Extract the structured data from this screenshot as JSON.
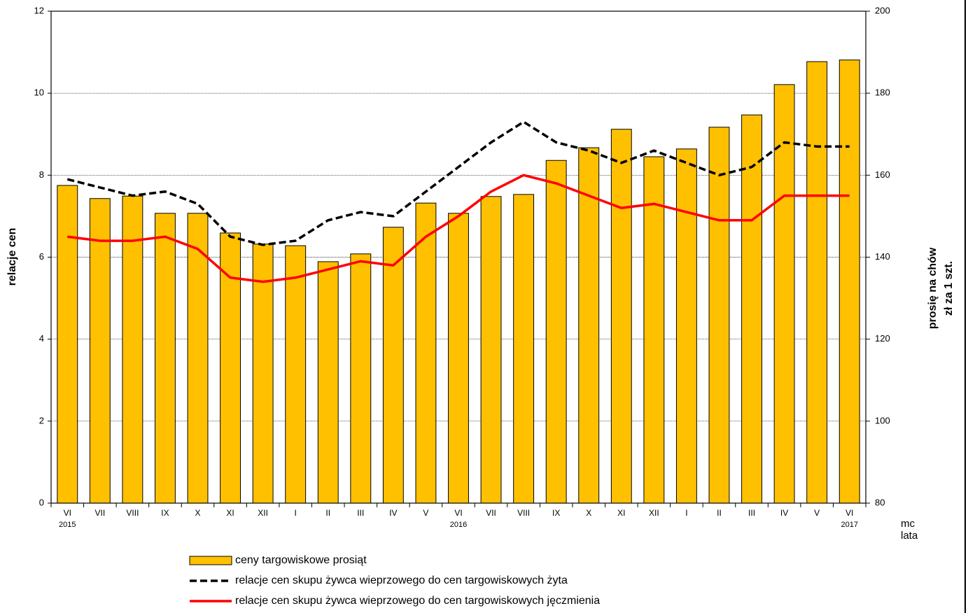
{
  "chart_data": {
    "type": "combo",
    "categories": [
      "VI",
      "VII",
      "VIII",
      "IX",
      "X",
      "XI",
      "XII",
      "I",
      "II",
      "III",
      "IV",
      "V",
      "VI",
      "VII",
      "VIII",
      "IX",
      "X",
      "XI",
      "XII",
      "I",
      "II",
      "III",
      "IV",
      "V",
      "VI"
    ],
    "year_labels": [
      "2015",
      null,
      null,
      null,
      null,
      null,
      null,
      null,
      null,
      null,
      null,
      null,
      "2016",
      null,
      null,
      null,
      null,
      null,
      null,
      null,
      null,
      null,
      null,
      null,
      "2017"
    ],
    "series": [
      {
        "name": "ceny targowiskowe prosiąt",
        "type": "bar",
        "axis": "y2",
        "color": "#ffc000",
        "values": [
          157.5,
          154.3,
          154.9,
          150.7,
          150.7,
          145.9,
          143.2,
          142.8,
          138.9,
          140.8,
          147.3,
          153.2,
          150.7,
          154.8,
          155.3,
          163.6,
          166.7,
          171.2,
          164.5,
          166.4,
          171.7,
          174.7,
          182.1,
          187.7,
          188.1
        ]
      },
      {
        "name": "relacje cen skupu żywca wieprzowego do cen targowiskowych żyta",
        "type": "line",
        "dash": true,
        "color": "#000000",
        "values": [
          7.9,
          7.7,
          7.5,
          7.6,
          7.3,
          6.5,
          6.3,
          6.4,
          6.9,
          7.1,
          7.0,
          7.6,
          8.2,
          8.8,
          9.3,
          8.8,
          8.6,
          8.3,
          8.6,
          8.3,
          8.0,
          8.2,
          8.8,
          8.7,
          8.7
        ]
      },
      {
        "name": "relacje cen skupu żywca wieprzowego do cen targowiskowych jęczmienia",
        "type": "line",
        "dash": false,
        "color": "#ff0000",
        "values": [
          6.5,
          6.4,
          6.4,
          6.5,
          6.2,
          5.5,
          5.4,
          5.5,
          5.7,
          5.9,
          5.8,
          6.5,
          7.0,
          7.6,
          8.0,
          7.8,
          7.5,
          7.2,
          7.3,
          7.1,
          6.9,
          6.9,
          7.5,
          7.5,
          7.5
        ]
      }
    ],
    "ylabel": "relacje cen",
    "y2label": [
      "prosię na chów",
      "zł za 1 szt."
    ],
    "xlabel": [
      "mc",
      "lata"
    ],
    "ylim": [
      0,
      12
    ],
    "yticks": [
      0,
      2,
      4,
      6,
      8,
      10,
      12
    ],
    "y2lim": [
      80,
      200
    ],
    "y2ticks": [
      80,
      100,
      120,
      140,
      160,
      180,
      200
    ],
    "grid": true
  }
}
